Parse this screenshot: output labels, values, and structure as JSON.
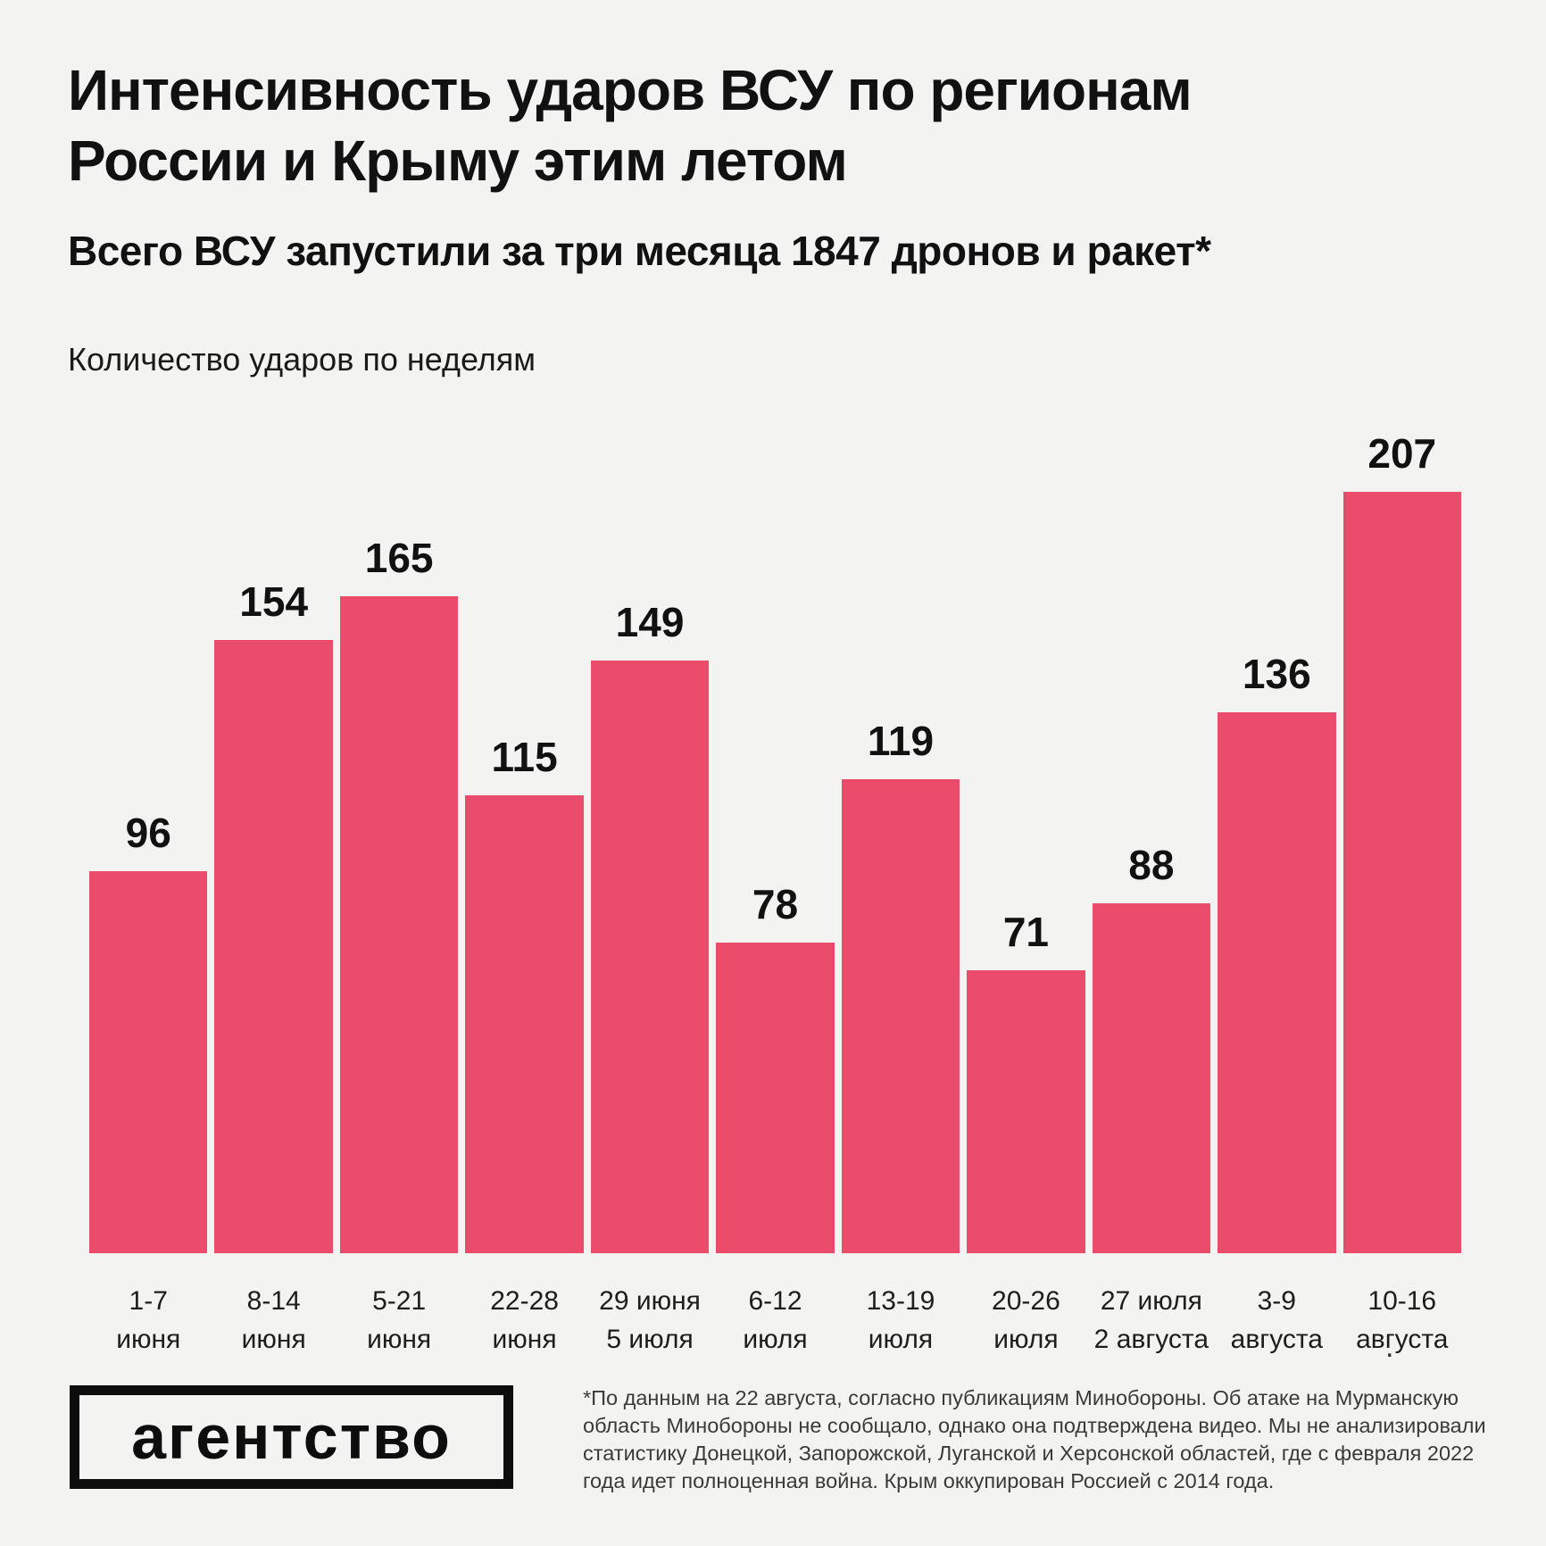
{
  "colors": {
    "background": "#f3f3f1",
    "bar": "#eb4c6b",
    "title_text": "#111111",
    "note_text": "#3a3a3a"
  },
  "header": {
    "title_lines": [
      "Интенсивность ударов ВСУ по регионам",
      "России и Крыму этим летом"
    ],
    "subtitle": "Всего ВСУ запустили за три месяца 1847 дронов и ракет*",
    "chart_label": "Количество ударов по неделям"
  },
  "chart_data": {
    "type": "bar",
    "title": "Интенсивность ударов ВСУ по регионам России и Крыму этим летом",
    "subtitle": "Всего ВСУ запустили за три месяца 1847 дронов и ракет*",
    "ylabel": "Количество ударов по неделям",
    "xlabel": "",
    "categories": [
      [
        "1-7",
        "июня"
      ],
      [
        "8-14",
        "июня"
      ],
      [
        "5-21",
        "июня"
      ],
      [
        "22-28",
        "июня"
      ],
      [
        "29 июня",
        "5 июля"
      ],
      [
        "6-12",
        "июля"
      ],
      [
        "13-19",
        "июля"
      ],
      [
        "20-26",
        "июля"
      ],
      [
        "27 июля",
        "2 августа"
      ],
      [
        "3-9",
        "августа"
      ],
      [
        "10-16",
        "августа"
      ]
    ],
    "values": [
      96,
      154,
      165,
      115,
      149,
      78,
      119,
      71,
      88,
      136,
      207
    ],
    "ylim": [
      0,
      207
    ],
    "bar_color": "#eb4c6b",
    "grid": false,
    "legend": false,
    "value_labels_shown": true,
    "axis_lines_shown": false
  },
  "footer": {
    "logo_text": "агентство",
    "note_lines": [
      "*По данным на 22 августа, согласно публикациям Минобороны. Об атаке на Мурманскую",
      "область Минобороны не сообщало, однако она подтверждена видео. Мы не анализировали",
      "статистику Донецкой, Запорожской, Луганской и Херсонской областей, где с февраля 2022",
      "года идет полноценная война. Крым оккупирован Россией с 2014 года."
    ],
    "stray_dot": "."
  }
}
